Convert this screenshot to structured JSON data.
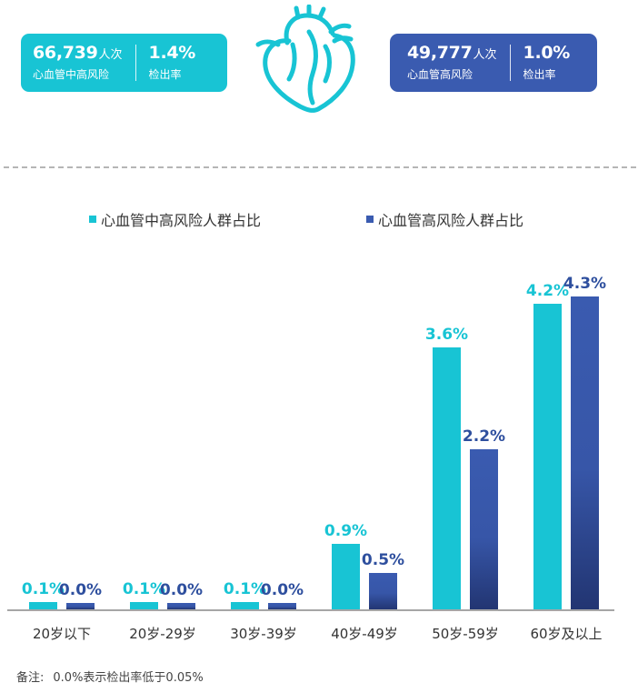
{
  "cards": [
    {
      "number": "66,739",
      "unit": "人次",
      "sub": "心血管中高风险",
      "rate": "1.4%",
      "rate_label": "检出率",
      "color": "#18c4d4"
    },
    {
      "number": "49,777",
      "unit": "人次",
      "sub": "心血管高风险",
      "rate": "1.0%",
      "rate_label": "检出率",
      "color": "#3a5bb0"
    }
  ],
  "icon": "heart-icon",
  "colors": {
    "teal": "#18c4d4",
    "navy": "#3a5bb0",
    "navy_dark": "#243a7a",
    "label_teal": "#18c4d4",
    "label_navy": "#2e4f9e"
  },
  "chart_data": {
    "type": "bar",
    "categories": [
      "20岁以下",
      "20岁-29岁",
      "30岁-39岁",
      "40岁-49岁",
      "50岁-59岁",
      "60岁及以上"
    ],
    "series": [
      {
        "name": "心血管中高风险人群占比",
        "values": [
          0.1,
          0.1,
          0.1,
          0.9,
          3.6,
          4.2
        ],
        "labels": [
          "0.1%",
          "0.1%",
          "0.1%",
          "0.9%",
          "3.6%",
          "4.2%"
        ],
        "color": "#18c4d4"
      },
      {
        "name": "心血管高风险人群占比",
        "values": [
          0.0,
          0.0,
          0.0,
          0.5,
          2.2,
          4.3
        ],
        "labels": [
          "0.0%",
          "0.0%",
          "0.0%",
          "0.5%",
          "2.2%",
          "4.3%"
        ],
        "color": "#3a5bb0"
      }
    ],
    "ylim": [
      0,
      4.5
    ],
    "grid": false,
    "legend": "top",
    "min_display_value": 0.3
  },
  "note": {
    "label": "备注:",
    "text": "0.0%表示检出率低于0.05%"
  }
}
